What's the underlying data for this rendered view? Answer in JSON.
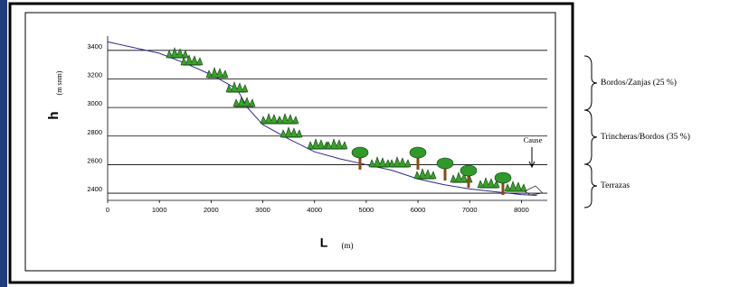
{
  "chart_data": {
    "type": "line",
    "ylabel": "h",
    "ylabel_unit": "(m snm)",
    "xlabel": "L",
    "xlabel_unit": "(m)",
    "x": [
      0,
      1000,
      1500,
      2000,
      2500,
      2700,
      3000,
      3500,
      4000,
      4500,
      5000,
      5500,
      6000,
      6500,
      7000,
      7500,
      8000,
      8300
    ],
    "values": [
      3460,
      3380,
      3310,
      3230,
      3130,
      3000,
      2880,
      2780,
      2690,
      2640,
      2600,
      2560,
      2500,
      2460,
      2430,
      2410,
      2390,
      2385
    ],
    "color": "#2b2b8c",
    "xlim": [
      0,
      8500
    ],
    "xticks": [
      0,
      1000,
      2000,
      3000,
      4000,
      5000,
      6000,
      7000,
      8000
    ],
    "ylim": [
      2350,
      3500
    ],
    "yticks": [
      2400,
      2600,
      2800,
      3000,
      3200,
      3400
    ],
    "grid": true,
    "annotations": [
      "Bordos/Zanjas (25 %)",
      "Trincheras/Bordos (35 %)",
      "Terrazas",
      "Cause"
    ]
  }
}
